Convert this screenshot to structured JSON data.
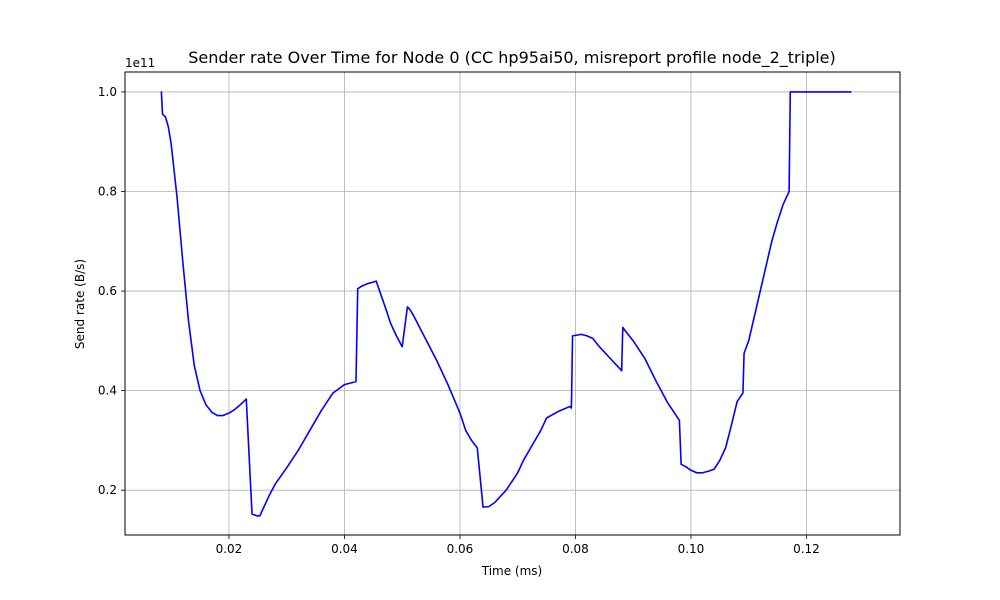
{
  "chart_data": {
    "type": "line",
    "title": "Sender rate Over Time for Node 0 (CC hp95ai50, misreport profile node_2_triple)",
    "xlabel": "Time (ms)",
    "ylabel": "Send rate (B/s)",
    "y_offset_label": "1e11",
    "xlim": [
      0.002,
      0.1362
    ],
    "ylim": [
      0.11,
      1.04
    ],
    "x_ticks": [
      0.02,
      0.04,
      0.06,
      0.08,
      0.1,
      0.12
    ],
    "x_tick_labels": [
      "0.02",
      "0.04",
      "0.06",
      "0.08",
      "0.10",
      "0.12"
    ],
    "y_ticks": [
      0.2,
      0.4,
      0.6,
      0.8,
      1.0
    ],
    "y_tick_labels": [
      "0.2",
      "0.4",
      "0.6",
      "0.8",
      "1.0"
    ],
    "grid": true,
    "line_color": "#0000ff",
    "series": [
      {
        "x": [
          0.0083,
          0.0085,
          0.009,
          0.0095,
          0.01,
          0.011,
          0.012,
          0.013,
          0.014,
          0.015,
          0.016,
          0.017,
          0.018,
          0.019,
          0.02,
          0.021,
          0.022,
          0.023,
          0.024,
          0.025,
          0.0254,
          0.0256,
          0.026,
          0.027,
          0.028,
          0.03,
          0.032,
          0.034,
          0.036,
          0.038,
          0.04,
          0.041,
          0.042,
          0.0423,
          0.0425,
          0.043,
          0.044,
          0.045,
          0.0455,
          0.046,
          0.047,
          0.048,
          0.049,
          0.05,
          0.0509,
          0.0511,
          0.0515,
          0.052,
          0.054,
          0.056,
          0.058,
          0.06,
          0.061,
          0.062,
          0.0628,
          0.063,
          0.064,
          0.065,
          0.066,
          0.068,
          0.07,
          0.071,
          0.072,
          0.073,
          0.074,
          0.075,
          0.077,
          0.079,
          0.0793,
          0.0795,
          0.081,
          0.082,
          0.083,
          0.084,
          0.086,
          0.088,
          0.0882,
          0.0885,
          0.09,
          0.092,
          0.094,
          0.096,
          0.098,
          0.0983,
          0.099,
          0.1,
          0.101,
          0.102,
          0.103,
          0.104,
          0.105,
          0.106,
          0.107,
          0.108,
          0.109,
          0.1092,
          0.11,
          0.111,
          0.112,
          0.113,
          0.114,
          0.115,
          0.116,
          0.117,
          0.1172,
          0.1175,
          0.118,
          0.12,
          0.122,
          0.125,
          0.1277
        ],
        "y": [
          1.0,
          0.955,
          0.95,
          0.93,
          0.895,
          0.79,
          0.66,
          0.54,
          0.45,
          0.4,
          0.372,
          0.357,
          0.35,
          0.35,
          0.355,
          0.362,
          0.372,
          0.383,
          0.152,
          0.148,
          0.149,
          0.155,
          0.165,
          0.19,
          0.212,
          0.245,
          0.28,
          0.32,
          0.36,
          0.395,
          0.412,
          0.415,
          0.418,
          0.605,
          0.606,
          0.61,
          0.615,
          0.618,
          0.62,
          0.603,
          0.57,
          0.535,
          0.51,
          0.488,
          0.568,
          0.566,
          0.56,
          0.55,
          0.505,
          0.46,
          0.41,
          0.355,
          0.32,
          0.3,
          0.288,
          0.285,
          0.166,
          0.167,
          0.175,
          0.2,
          0.235,
          0.26,
          0.28,
          0.3,
          0.32,
          0.345,
          0.358,
          0.368,
          0.365,
          0.51,
          0.513,
          0.51,
          0.505,
          0.49,
          0.465,
          0.44,
          0.527,
          0.522,
          0.5,
          0.465,
          0.418,
          0.375,
          0.34,
          0.252,
          0.248,
          0.24,
          0.235,
          0.235,
          0.238,
          0.242,
          0.26,
          0.285,
          0.33,
          0.378,
          0.395,
          0.475,
          0.5,
          0.55,
          0.6,
          0.65,
          0.7,
          0.74,
          0.775,
          0.8,
          1.0,
          1.0,
          1.0,
          1.0,
          1.0,
          1.0,
          1.0
        ]
      }
    ]
  }
}
